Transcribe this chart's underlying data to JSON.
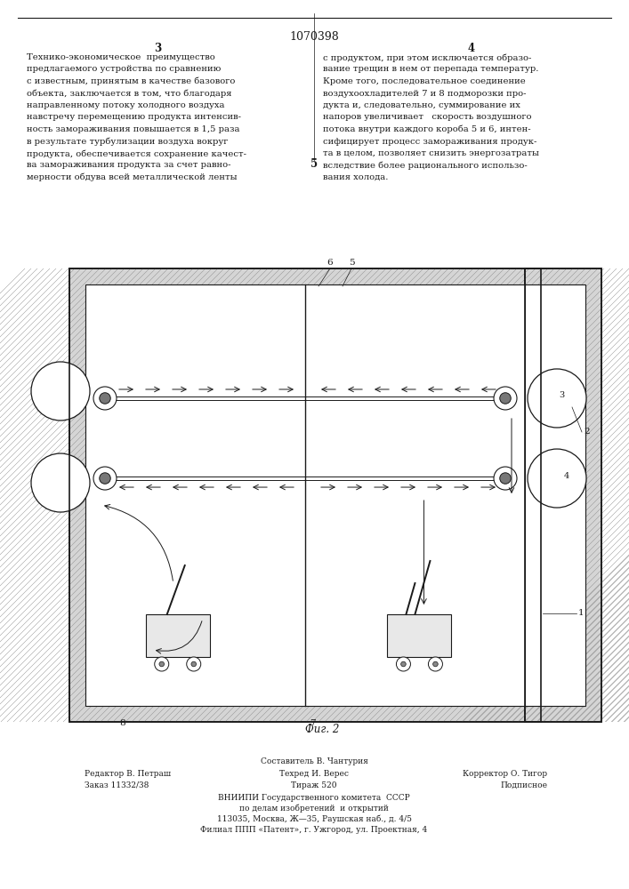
{
  "title": "1070398",
  "col_left_num": "3",
  "col_right_num": "4",
  "page_num_center": "5",
  "left_text": "Технико-экономическое  преимущество\nпредлагаемого устройства по сравнению\nс известным, принятым в качестве базового\nобъекта, заключается в том, что благодаря\nнаправленному потоку холодного воздуха\nнавстречу перемещению продукта интенсив-\nность замораживания повышается в 1,5 раза\nв результате турбулизации воздуха вокруг\nпродукта, обеспечивается сохранение качест-\nва замораживания продукта за счет равно-\nмерности обдува всей металлической ленты",
  "right_text": "с продуктом, при этом исключается образо-\nвание трещин в нем от перепада температур.\nКроме того, последовательное соединение\nвоздухоохладителей 7 и 8 подморозки про-\nдукта и, следовательно, суммирование их\nнапоров увеличивает   скорость воздушного\nпотока внутри каждого короба 5 и 6, интен-\nсифицирует процесс замораживания продук-\nта в целом, позволяет снизить энергозатраты\nвследствие более рационального использо-\nвания холода.",
  "fig_caption": "Фиг. 2",
  "bottom_line1": "Составитель В. Чантурия",
  "bottom_line2_left": "Редактор В. Петраш",
  "bottom_line2_mid": "Техред И. Верес",
  "bottom_line2_right": "Корректор О. Тигор",
  "bottom_line3_left": "Заказ 11332/38",
  "bottom_line3_mid": "Тираж 520",
  "bottom_line3_right": "Подписное",
  "bottom_line4": "ВНИИПИ Государственного комитета  СССР",
  "bottom_line5": "по делам изобретений  и открытий",
  "bottom_line6": "113035, Москва, Ж—35, Раушская наб., д. 4/5",
  "bottom_line7": "Филиал ППП «Патент», г. Ужгород, ул. Проектная, 4",
  "text_color": "#1a1a1a"
}
